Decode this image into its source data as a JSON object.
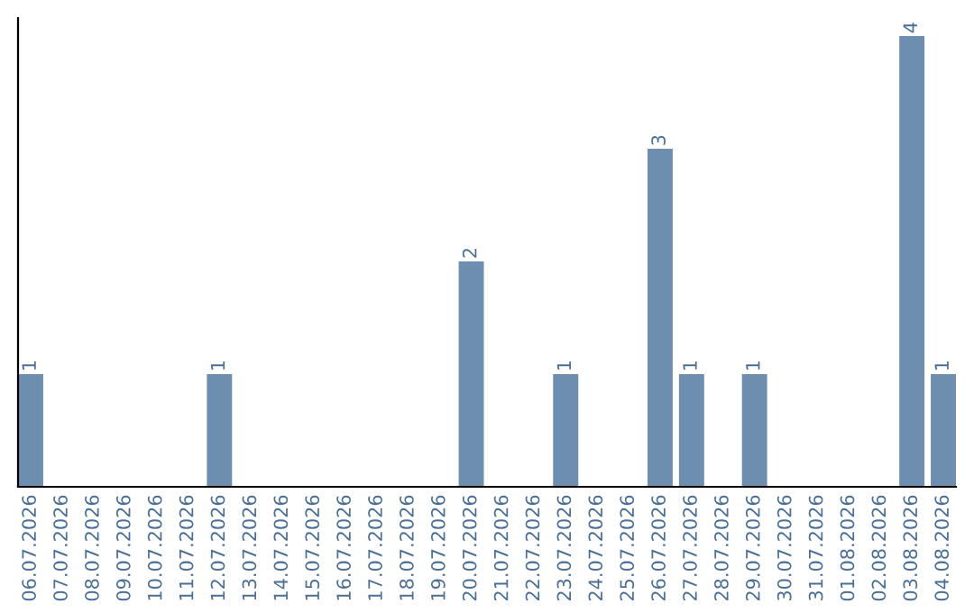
{
  "chart_data": {
    "type": "bar",
    "categories": [
      "06.07.2026",
      "07.07.2026",
      "08.07.2026",
      "09.07.2026",
      "10.07.2026",
      "11.07.2026",
      "12.07.2026",
      "13.07.2026",
      "14.07.2026",
      "15.07.2026",
      "16.07.2026",
      "17.07.2026",
      "18.07.2026",
      "19.07.2026",
      "20.07.2026",
      "21.07.2026",
      "22.07.2026",
      "23.07.2026",
      "24.07.2026",
      "25.07.2026",
      "26.07.2026",
      "27.07.2026",
      "28.07.2026",
      "29.07.2026",
      "30.07.2026",
      "31.07.2026",
      "01.08.2026",
      "02.08.2026",
      "03.08.2026",
      "04.08.2026"
    ],
    "values": [
      1,
      0,
      0,
      0,
      0,
      0,
      1,
      0,
      0,
      0,
      0,
      0,
      0,
      0,
      2,
      0,
      0,
      1,
      0,
      0,
      3,
      1,
      0,
      1,
      0,
      0,
      0,
      0,
      4,
      1
    ],
    "value_labels": [
      "1",
      null,
      null,
      null,
      null,
      null,
      "1",
      null,
      null,
      null,
      null,
      null,
      null,
      null,
      "2",
      null,
      null,
      "1",
      null,
      null,
      "3",
      "1",
      null,
      "1",
      null,
      null,
      null,
      null,
      "4",
      "1"
    ],
    "color": "#6d8eae",
    "tick_labels": "x",
    "grid": false,
    "legend": false
  }
}
